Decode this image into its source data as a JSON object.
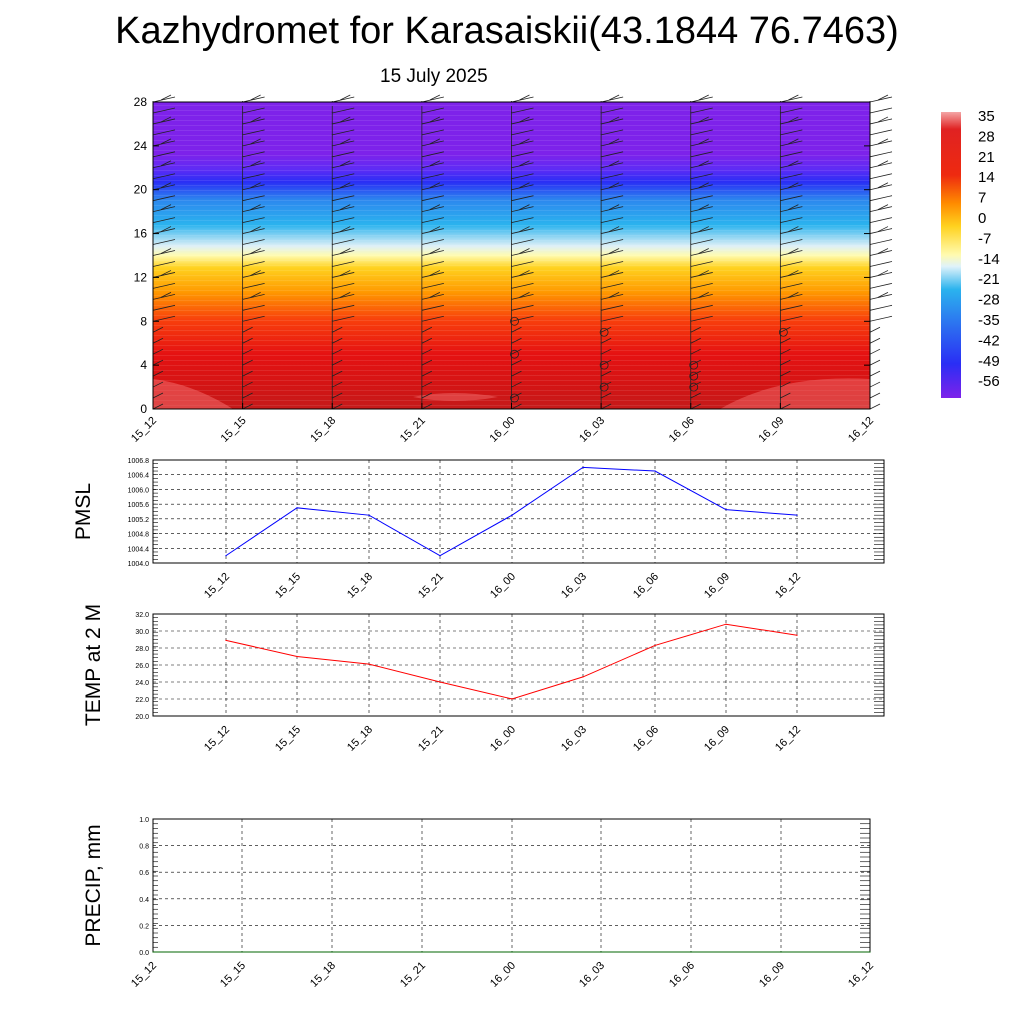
{
  "header": {
    "title": "Kazhydromet for Karasaiskii(43.1844 76.7463)",
    "subtitle": "15 July 2025"
  },
  "colorbar": {
    "labels": [
      "35",
      "28",
      "21",
      "14",
      "7",
      "0",
      "-7",
      "-14",
      "-21",
      "-28",
      "-35",
      "-42",
      "-49",
      "-56"
    ]
  },
  "colors": {
    "pmsl_line": "#0000ff",
    "temp_line": "#ff0000",
    "precip_line": "#006400",
    "grid": "#000000"
  },
  "chart_data": [
    {
      "type": "heatmap",
      "title": "Kazhydromet for Karasaiskii(43.1844 76.7463)",
      "subtitle": "15 July 2025",
      "x_ticks": [
        "15_12",
        "15_15",
        "15_18",
        "15_21",
        "16_00",
        "16_03",
        "16_06",
        "16_09",
        "16_12"
      ],
      "y_ticks": [
        0,
        4,
        8,
        12,
        16,
        20,
        24,
        28
      ],
      "ylim": [
        0,
        28
      ],
      "levels": [
        0,
        2,
        4,
        6,
        8,
        10,
        12,
        14,
        16,
        18,
        20,
        22,
        24,
        26,
        28
      ],
      "temperature_profile": [
        32,
        29,
        25,
        20,
        14,
        6,
        -2,
        -14,
        -28,
        -42,
        -52,
        -56,
        -57,
        -57,
        -57
      ],
      "colorbar_range": [
        -56,
        35
      ],
      "colorbar_ticks": [
        35,
        28,
        21,
        14,
        7,
        0,
        -7,
        -14,
        -21,
        -28,
        -35,
        -42,
        -49,
        -56
      ]
    },
    {
      "type": "line",
      "ylabel": "PMSL",
      "x_ticks": [
        "15_12",
        "15_15",
        "15_18",
        "15_21",
        "16_00",
        "16_03",
        "16_06",
        "16_09",
        "16_12"
      ],
      "series": [
        {
          "values": [
            1004.2,
            1005.5,
            1005.3,
            1004.2,
            1005.3,
            1006.6,
            1006.5,
            1005.45,
            1005.3
          ]
        }
      ],
      "ylim": [
        1004.0,
        1006.8
      ],
      "y_ticks": [
        "1004.0",
        "1004.4",
        "1004.8",
        "1005.2",
        "1005.6",
        "1006.0",
        "1006.4",
        "1006.8"
      ],
      "grid": true
    },
    {
      "type": "line",
      "ylabel": "TEMP at 2 M",
      "x_ticks": [
        "15_12",
        "15_15",
        "15_18",
        "15_21",
        "16_00",
        "16_03",
        "16_06",
        "16_09",
        "16_12"
      ],
      "series": [
        {
          "values": [
            28.9,
            27.0,
            26.1,
            24.0,
            22.0,
            24.6,
            28.3,
            30.8,
            29.5
          ]
        }
      ],
      "ylim": [
        20.0,
        32.0
      ],
      "y_ticks": [
        "20.0",
        "22.0",
        "24.0",
        "26.0",
        "28.0",
        "30.0",
        "32.0"
      ],
      "grid": true
    },
    {
      "type": "line",
      "ylabel": "PRECIP, mm",
      "x_ticks": [
        "15_12",
        "15_15",
        "15_18",
        "15_21",
        "16_00",
        "16_03",
        "16_06",
        "16_09",
        "16_12"
      ],
      "series": [
        {
          "values": [
            0,
            0,
            0,
            0,
            0,
            0,
            0,
            0,
            0
          ]
        }
      ],
      "ylim": [
        0.0,
        1.0
      ],
      "y_ticks": [
        "0.0",
        "0.2",
        "0.4",
        "0.6",
        "0.8",
        "1.0"
      ],
      "grid": true
    }
  ]
}
